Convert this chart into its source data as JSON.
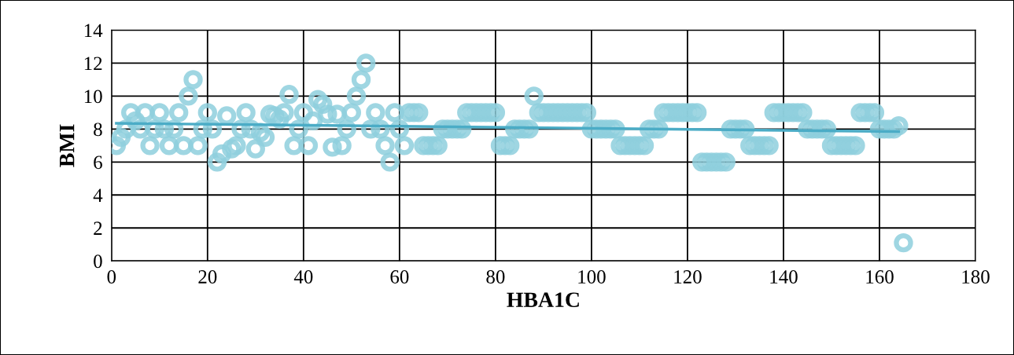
{
  "chart_data": {
    "type": "scatter",
    "xlabel": "HBA1C",
    "ylabel": "BMI",
    "xlim": [
      0,
      180
    ],
    "xticks": [
      0,
      20,
      40,
      60,
      80,
      100,
      120,
      140,
      160,
      180
    ],
    "ylim": [
      0,
      14
    ],
    "yticks": [
      0,
      2,
      4,
      6,
      8,
      10,
      12,
      14
    ],
    "grid": true,
    "marker": "circle",
    "series": [
      {
        "color": "#8ecfdd",
        "x": [
          1,
          2,
          3,
          4,
          5,
          6,
          7,
          8,
          9,
          10,
          11,
          12,
          13,
          14,
          15,
          16,
          17,
          18,
          19,
          20,
          21,
          22,
          23,
          24,
          25,
          26,
          27,
          28,
          29,
          30,
          31,
          32,
          33,
          34,
          35,
          36,
          37,
          38,
          39,
          40,
          41,
          42,
          43,
          44,
          45,
          46,
          47,
          48,
          49,
          50,
          51,
          52,
          53,
          54,
          55,
          56,
          57,
          58,
          59,
          60,
          61,
          62,
          63,
          64,
          65,
          66,
          67,
          68,
          69,
          70,
          71,
          72,
          73,
          74,
          75,
          76,
          77,
          78,
          79,
          80,
          81,
          82,
          83,
          84,
          85,
          86,
          87,
          88,
          89,
          90,
          91,
          92,
          93,
          94,
          95,
          96,
          97,
          98,
          99,
          100,
          101,
          102,
          103,
          104,
          105,
          106,
          107,
          108,
          109,
          110,
          111,
          112,
          113,
          114,
          115,
          116,
          117,
          118,
          119,
          120,
          121,
          122,
          123,
          124,
          125,
          126,
          127,
          128,
          129,
          130,
          131,
          132,
          133,
          134,
          135,
          136,
          137,
          138,
          139,
          140,
          141,
          142,
          143,
          144,
          145,
          146,
          147,
          148,
          149,
          150,
          151,
          152,
          153,
          154,
          155,
          156,
          157,
          158,
          159,
          160,
          161,
          162,
          163,
          164,
          165
        ],
        "values": [
          7,
          7.5,
          8,
          9,
          8.5,
          8,
          9,
          7,
          8,
          9,
          8,
          7,
          8,
          9,
          7,
          10,
          11,
          7,
          8,
          9,
          8,
          6,
          6.5,
          8.8,
          6.8,
          7,
          8,
          9,
          8,
          6.8,
          7.8,
          7.5,
          8.9,
          8.8,
          8.6,
          9,
          10.1,
          7,
          8,
          9,
          7,
          8.5,
          9.8,
          9.5,
          8.9,
          6.9,
          8.9,
          7,
          8,
          9,
          10,
          11,
          12,
          8,
          9,
          8,
          7,
          6,
          9,
          8,
          7,
          9,
          9,
          9,
          7,
          7,
          7,
          7,
          8,
          8,
          8,
          8,
          8,
          9,
          9,
          9,
          9,
          9,
          9,
          9,
          7,
          7,
          7,
          8,
          8,
          8,
          8,
          10,
          9,
          9,
          9,
          9,
          9,
          9,
          9,
          9,
          9,
          9,
          9,
          8,
          8,
          8,
          8,
          8,
          8,
          7,
          7,
          7,
          7,
          7,
          7,
          8,
          8,
          8,
          9,
          9,
          9,
          9,
          9,
          9,
          9,
          9,
          6,
          6,
          6,
          6,
          6,
          6,
          8,
          8,
          8,
          8,
          7,
          7,
          7,
          7,
          7,
          9,
          9,
          9,
          9,
          9,
          9,
          9,
          8,
          8,
          8,
          8,
          8,
          7,
          7,
          7,
          7,
          7,
          7,
          9,
          9,
          9,
          9,
          8,
          8,
          8,
          8,
          8.2,
          1.1
        ]
      },
      {
        "type": "line",
        "color": "#4bacc6",
        "marker": "none",
        "x": [
          1,
          164
        ],
        "values": [
          8.35,
          7.85
        ]
      }
    ]
  }
}
